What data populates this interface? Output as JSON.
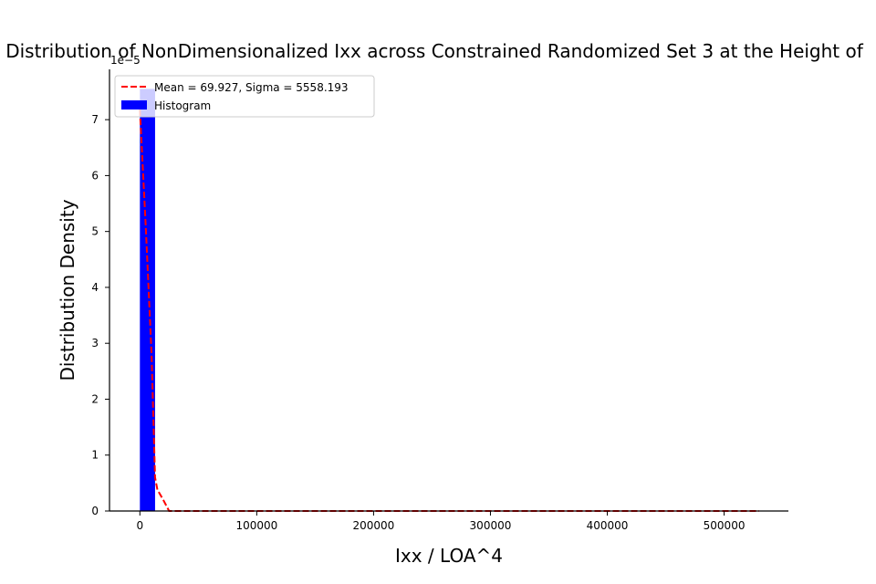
{
  "chart_data": {
    "type": "bar",
    "title": "Distribution of NonDimensionalized Ixx across Constrained Randomized Set 3 at the Height of",
    "xlabel": "Ixx / LOA^4",
    "ylabel": "Distribution Density",
    "y_offset_text": "1e−5",
    "y_scale": 1e-05,
    "xlim": [
      -26000,
      555000
    ],
    "ylim": [
      0,
      7.9
    ],
    "x_ticks": [
      0,
      100000,
      200000,
      300000,
      400000,
      500000
    ],
    "x_tick_labels": [
      "0",
      "100000",
      "200000",
      "300000",
      "400000",
      "500000"
    ],
    "y_ticks": [
      0,
      1,
      2,
      3,
      4,
      5,
      6,
      7
    ],
    "y_tick_labels": [
      "0",
      "1",
      "2",
      "3",
      "4",
      "5",
      "6",
      "7"
    ],
    "grid": false,
    "legend_position": "upper-left",
    "series": [
      {
        "name": "Histogram",
        "kind": "bar",
        "color": "#0000ff",
        "bins": [
          {
            "x0": 0,
            "x1": 13000,
            "value": 7.55
          }
        ]
      },
      {
        "name": "Mean = 69.927, Sigma = 5558.193",
        "kind": "line",
        "color": "#ff0000",
        "dash": "dashed",
        "x": [
          0,
          5000,
          10000,
          13000,
          15000,
          20000,
          25000,
          50000,
          100000,
          200000,
          300000,
          400000,
          500000,
          530000
        ],
        "y": [
          7.18,
          5.1,
          2.8,
          0.6,
          0.38,
          0.2,
          0.0,
          0.0,
          0.0,
          0.0,
          0.0,
          0.0,
          0.0,
          0.0
        ]
      }
    ]
  }
}
